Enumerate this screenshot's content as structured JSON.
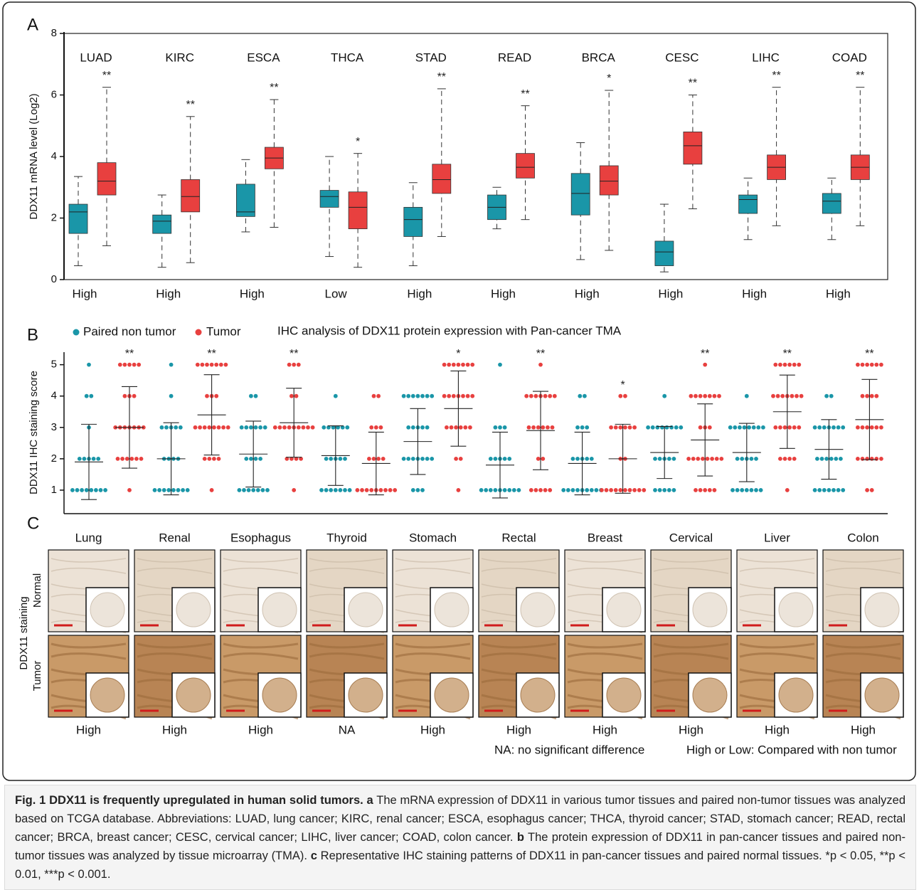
{
  "chart_data": [
    {
      "type": "box",
      "panel": "A",
      "ylabel": "DDX11 mRNA level (Log2)",
      "ylim": [
        0,
        8
      ],
      "yticks": [
        0,
        2,
        4,
        6,
        8
      ],
      "colors": {
        "normal": "#1a96a8",
        "tumor": "#e8403f"
      },
      "groups": [
        {
          "label": "LUAD",
          "normal": [
            0.45,
            1.5,
            2.2,
            2.45,
            3.35
          ],
          "tumor": [
            1.1,
            2.75,
            3.2,
            3.8,
            6.25
          ],
          "significance": "**",
          "change": "High"
        },
        {
          "label": "KIRC",
          "normal": [
            0.4,
            1.5,
            1.9,
            2.1,
            2.75
          ],
          "tumor": [
            0.55,
            2.2,
            2.7,
            3.25,
            5.3
          ],
          "significance": "**",
          "change": "High"
        },
        {
          "label": "ESCA",
          "normal": [
            1.55,
            2.05,
            2.2,
            3.1,
            3.9
          ],
          "tumor": [
            1.7,
            3.6,
            3.95,
            4.3,
            5.85
          ],
          "significance": "**",
          "change": "High"
        },
        {
          "label": "THCA",
          "normal": [
            0.75,
            2.35,
            2.7,
            2.9,
            4.0
          ],
          "tumor": [
            0.4,
            1.65,
            2.35,
            2.85,
            4.1
          ],
          "significance": "*",
          "change": "Low"
        },
        {
          "label": "STAD",
          "normal": [
            0.45,
            1.4,
            1.95,
            2.35,
            3.15
          ],
          "tumor": [
            1.4,
            2.8,
            3.25,
            3.75,
            6.2
          ],
          "significance": "**",
          "change": "High"
        },
        {
          "label": "READ",
          "normal": [
            1.65,
            1.95,
            2.35,
            2.75,
            3.0
          ],
          "tumor": [
            1.95,
            3.3,
            3.65,
            4.1,
            5.65
          ],
          "significance": "**",
          "change": "High"
        },
        {
          "label": "BRCA",
          "normal": [
            0.65,
            2.1,
            2.8,
            3.45,
            4.45
          ],
          "tumor": [
            0.95,
            2.75,
            3.2,
            3.7,
            6.15
          ],
          "significance": "*",
          "change": "High"
        },
        {
          "label": "CESC",
          "normal": [
            0.25,
            0.45,
            0.9,
            1.25,
            2.45
          ],
          "tumor": [
            2.3,
            3.75,
            4.35,
            4.8,
            6.0
          ],
          "significance": "**",
          "change": "High"
        },
        {
          "label": "LIHC",
          "normal": [
            1.3,
            2.15,
            2.6,
            2.75,
            3.3
          ],
          "tumor": [
            1.75,
            3.25,
            3.65,
            4.05,
            6.25
          ],
          "significance": "**",
          "change": "High"
        },
        {
          "label": "COAD",
          "normal": [
            1.3,
            2.15,
            2.55,
            2.8,
            3.3
          ],
          "tumor": [
            1.75,
            3.25,
            3.65,
            4.05,
            6.25
          ],
          "significance": "**",
          "change": "High"
        }
      ]
    },
    {
      "type": "dot",
      "panel": "B",
      "title": "IHC analysis of DDX11 protein expression with Pan-cancer TMA",
      "ylabel": "DDX11 IHC staining score",
      "ylim": [
        0.25,
        5.4
      ],
      "yticks": [
        1,
        2,
        3,
        4,
        5
      ],
      "series": [
        {
          "name": "Paired non tumor",
          "color": "#1a96a8"
        },
        {
          "name": "Tumor",
          "color": "#e8403f"
        }
      ],
      "scores": [
        1,
        2,
        3,
        4,
        5
      ],
      "groups": [
        {
          "normal": {
            "counts": [
              8,
              5,
              1,
              2,
              1
            ],
            "mean": 1.9,
            "sd": 1.2
          },
          "tumor": {
            "counts": [
              1,
              6,
              7,
              3,
              5
            ],
            "mean": 3.0,
            "sd": 1.3,
            "significance": "**"
          }
        },
        {
          "normal": {
            "counts": [
              8,
              4,
              5,
              1,
              1
            ],
            "mean": 2.0,
            "sd": 1.15
          },
          "tumor": {
            "counts": [
              1,
              4,
              8,
              3,
              7
            ],
            "mean": 3.4,
            "sd": 1.28,
            "significance": "**"
          }
        },
        {
          "normal": {
            "counts": [
              7,
              4,
              6,
              2,
              0
            ],
            "mean": 2.15,
            "sd": 1.05
          },
          "tumor": {
            "counts": [
              1,
              4,
              9,
              2,
              3
            ],
            "mean": 3.15,
            "sd": 1.1,
            "significance": "**"
          }
        },
        {
          "normal": {
            "counts": [
              7,
              5,
              6,
              1,
              0
            ],
            "mean": 2.1,
            "sd": 0.95
          },
          "tumor": {
            "counts": [
              9,
              4,
              3,
              2,
              0
            ],
            "mean": 1.85,
            "sd": 1.0
          }
        },
        {
          "normal": {
            "counts": [
              3,
              7,
              5,
              7,
              0
            ],
            "mean": 2.55,
            "sd": 1.05
          },
          "tumor": {
            "counts": [
              1,
              2,
              6,
              7,
              7
            ],
            "mean": 3.6,
            "sd": 1.2,
            "significance": "*"
          }
        },
        {
          "normal": {
            "counts": [
              9,
              5,
              3,
              0,
              1
            ],
            "mean": 1.8,
            "sd": 1.05
          },
          "tumor": {
            "counts": [
              5,
              2,
              6,
              7,
              1
            ],
            "mean": 2.9,
            "sd": 1.25,
            "significance": "**"
          }
        },
        {
          "normal": {
            "counts": [
              9,
              5,
              3,
              2,
              0
            ],
            "mean": 1.85,
            "sd": 1.0
          },
          "tumor": {
            "counts": [
              10,
              2,
              6,
              2,
              0
            ],
            "mean": 2.0,
            "sd": 1.1,
            "significance": "*"
          }
        },
        {
          "normal": {
            "counts": [
              5,
              5,
              8,
              1,
              0
            ],
            "mean": 2.2,
            "sd": 0.83
          },
          "tumor": {
            "counts": [
              5,
              8,
              3,
              7,
              1
            ],
            "mean": 2.6,
            "sd": 1.15,
            "significance": "**"
          }
        },
        {
          "normal": {
            "counts": [
              7,
              5,
              8,
              1,
              0
            ],
            "mean": 2.2,
            "sd": 0.93
          },
          "tumor": {
            "counts": [
              1,
              4,
              6,
              7,
              6
            ],
            "mean": 3.5,
            "sd": 1.17,
            "significance": "**"
          }
        },
        {
          "normal": {
            "counts": [
              7,
              6,
              7,
              2,
              0
            ],
            "mean": 2.3,
            "sd": 0.95
          },
          "tumor": {
            "counts": [
              2,
              6,
              6,
              4,
              6
            ],
            "mean": 3.25,
            "sd": 1.28,
            "significance": "**"
          }
        }
      ]
    }
  ],
  "panel_c": {
    "panel": "C",
    "columns": [
      "Lung",
      "Renal",
      "Esophagus",
      "Thyroid",
      "Stomach",
      "Rectal",
      "Breast",
      "Cervical",
      "Liver",
      "Colon"
    ],
    "row_group": "DDX11 staining",
    "rows": [
      "Normal",
      "Tumor"
    ],
    "changes": [
      "High",
      "High",
      "High",
      "NA",
      "High",
      "High",
      "High",
      "High",
      "High",
      "High"
    ],
    "notes": [
      "NA: no significant difference",
      "High or Low: Compared with non tumor"
    ]
  },
  "caption": {
    "title": "Fig. 1 DDX11 is frequently upregulated in human solid tumors.",
    "parts": [
      {
        "label": "a",
        "text": "The mRNA expression of DDX11 in various tumor tissues and paired non-tumor tissues was analyzed based on TCGA database. Abbreviations: LUAD, lung cancer; KIRC, renal cancer; ESCA, esophagus cancer; THCA, thyroid cancer; STAD, stomach cancer; READ, rectal cancer; BRCA, breast cancer; CESC, cervical cancer; LIHC, liver cancer; COAD, colon cancer."
      },
      {
        "label": "b",
        "text": "The protein expression of DDX11 in pan-cancer tissues and paired non-tumor tissues was analyzed by tissue microarray (TMA)."
      },
      {
        "label": "c",
        "text": "Representative IHC staining patterns of DDX11 in pan-cancer tissues and paired normal tissues. *p < 0.05, **p < 0.01, ***p < 0.001."
      }
    ]
  }
}
